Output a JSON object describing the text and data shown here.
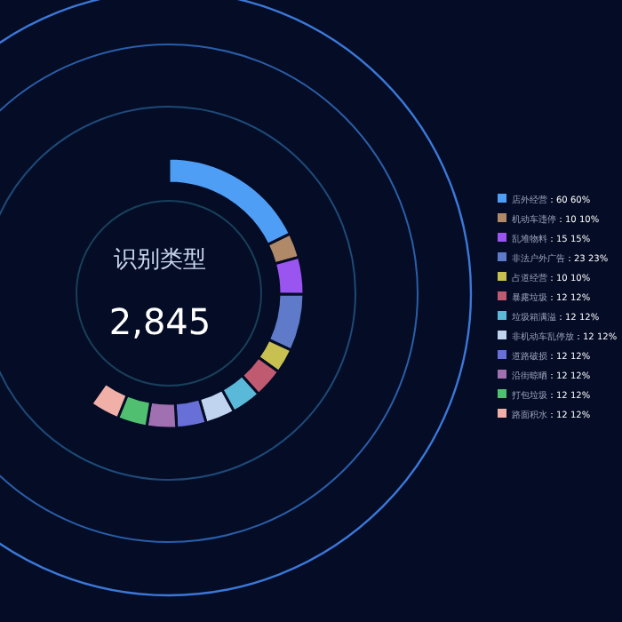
{
  "chart_data": {
    "type": "donut",
    "legend": "right",
    "data_labels": true,
    "categories": [
      "店外经营",
      "机动车违停",
      "乱堆物料",
      "非法户外广告",
      "占道经营",
      "暴露垃圾",
      "垃圾箱满溢",
      "非机动车乱停放",
      "道路破损",
      "沿街晾晒",
      "打包垃圾",
      "路面积水"
    ],
    "values": [
      60,
      10,
      15,
      23,
      10,
      12,
      12,
      12,
      12,
      12,
      12,
      12
    ],
    "value_labels": [
      "：60 60%",
      "：10 10%",
      "：15 15%",
      "：23 23%",
      "：10 10%",
      "：12 12%",
      "：12 12%",
      "：12 12%",
      "：12 12%",
      "：12 12%",
      "：12 12%",
      "：12 12%"
    ],
    "colors": [
      "#4f9ef5",
      "#b08a68",
      "#9a55f0",
      "#5e7ac8",
      "#c8c050",
      "#c05a70",
      "#5ab8d8",
      "#c0d4f0",
      "#6870d8",
      "#a070b0",
      "#50c070",
      "#f0b0a8"
    ],
    "annotations": [
      "识别类型",
      "2,845"
    ]
  }
}
